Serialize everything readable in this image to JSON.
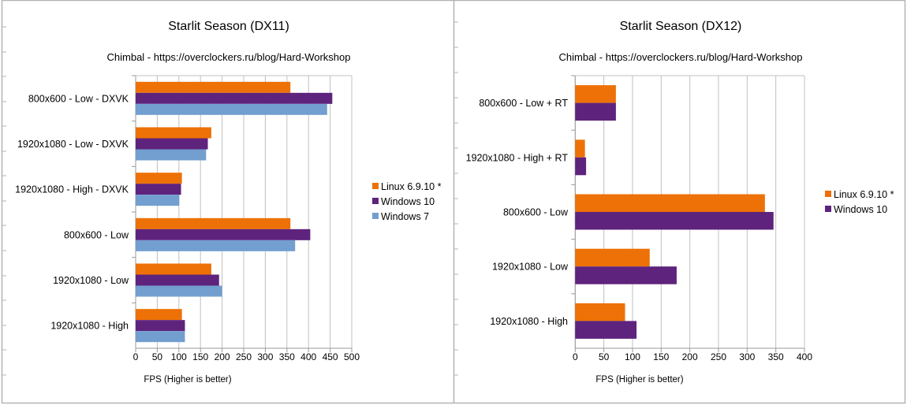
{
  "colors": {
    "linux": "#ed7106",
    "win10": "#5e237d",
    "win7": "#729fcf",
    "grid": "#c0c0c0",
    "frame": "#b4b4b4"
  },
  "chart_data": [
    {
      "type": "bar",
      "orientation": "horizontal",
      "title": "Starlit Season (DX11)",
      "subtitle": "Chimbal - https://overclockers.ru/blog/Hard-Workshop",
      "xlabel": "FPS (Higher is better)",
      "ylabel": "",
      "xlim": [
        0,
        500
      ],
      "xticks": [
        0,
        50,
        100,
        150,
        200,
        250,
        300,
        350,
        400,
        450,
        500
      ],
      "grid": true,
      "legend": "right",
      "categories": [
        "800x600 - Low - DXVK",
        "1920x1080 - Low - DXVK",
        "1920x1080 - High - DXVK",
        "800x600 - Low",
        "1920x1080 - Low",
        "1920x1080 - High"
      ],
      "series": [
        {
          "name": "Linux 6.9.10 *",
          "color_key": "linux",
          "values": [
            358,
            175,
            107,
            358,
            175,
            107
          ]
        },
        {
          "name": "Windows 10",
          "color_key": "win10",
          "values": [
            455,
            167,
            105,
            404,
            193,
            114
          ]
        },
        {
          "name": "Windows 7",
          "color_key": "win7",
          "values": [
            443,
            163,
            101,
            369,
            200,
            114
          ]
        }
      ]
    },
    {
      "type": "bar",
      "orientation": "horizontal",
      "title": "Starlit Season (DX12)",
      "subtitle": "Chimbal - https://overclockers.ru/blog/Hard-Workshop",
      "xlabel": "FPS (Higher is better)",
      "ylabel": "",
      "xlim": [
        0,
        400
      ],
      "xticks": [
        0,
        50,
        100,
        150,
        200,
        250,
        300,
        350,
        400
      ],
      "grid": true,
      "legend": "right",
      "categories": [
        "800x600 - Low + RT",
        "1920x1080 - High + RT",
        "800x600 - Low",
        "1920x1080 - Low",
        "1920x1080 - High"
      ],
      "series": [
        {
          "name": "Linux 6.9.10 *",
          "color_key": "linux",
          "values": [
            71,
            17,
            331,
            130,
            87
          ]
        },
        {
          "name": "Windows 10",
          "color_key": "win10",
          "values": [
            71,
            19,
            346,
            177,
            107
          ]
        }
      ]
    }
  ]
}
